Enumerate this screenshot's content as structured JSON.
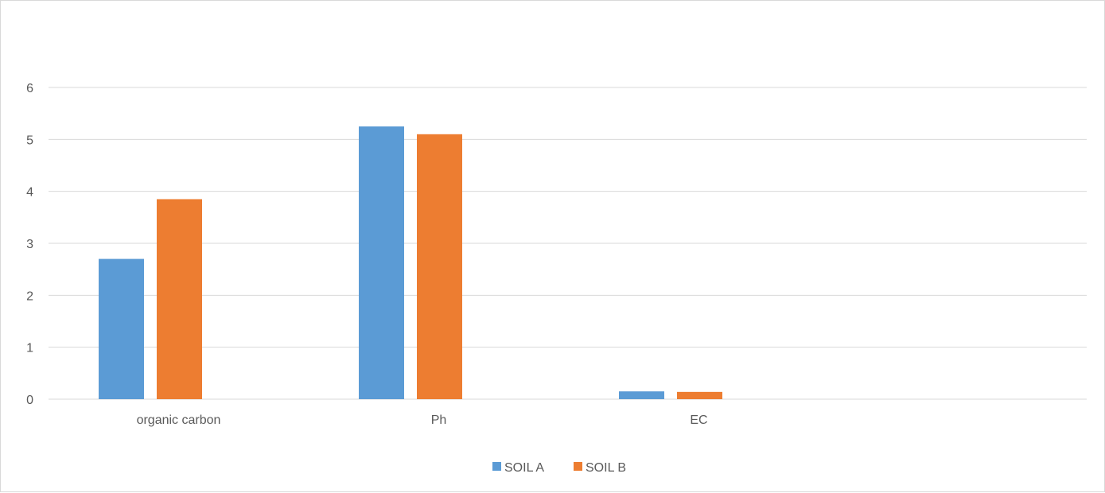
{
  "chart_data": {
    "type": "bar",
    "categories": [
      "organic carbon",
      "Ph",
      "EC"
    ],
    "series": [
      {
        "name": "SOIL A",
        "values": [
          2.7,
          5.25,
          0.15
        ],
        "color": "#5B9BD5"
      },
      {
        "name": "SOIL B",
        "values": [
          3.85,
          5.1,
          0.14
        ],
        "color": "#ED7D31"
      }
    ],
    "yticks": [
      0,
      1,
      2,
      3,
      4,
      5,
      6
    ],
    "ylim": [
      0,
      6
    ],
    "grid": true,
    "legend_position": "bottom"
  }
}
